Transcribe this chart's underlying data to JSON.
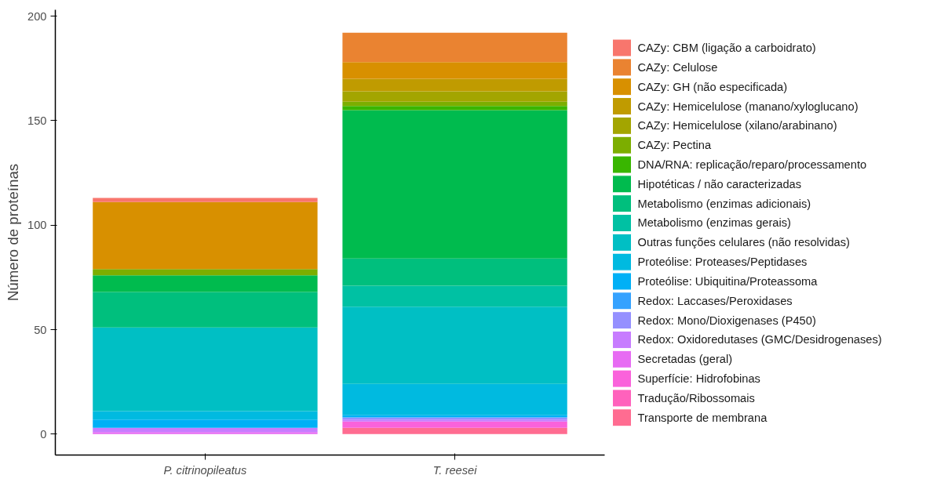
{
  "chart_data": {
    "type": "bar",
    "stacked": true,
    "ylabel": "Número de proteínas",
    "categories": [
      "P. citrinopileatus",
      "T. reesei"
    ],
    "ylim": [
      -10,
      203
    ],
    "yticks": [
      0,
      50,
      100,
      150,
      200
    ],
    "grid": false,
    "legend": "right",
    "series": [
      {
        "name": "Transporte de membrana",
        "color": "#ff6c91",
        "values": [
          0,
          3
        ]
      },
      {
        "name": "Tradução/Ribossomais",
        "color": "#ff62bc",
        "values": [
          0,
          0
        ]
      },
      {
        "name": "Superfície: Hidrofobinas",
        "color": "#fa62db",
        "values": [
          0,
          3
        ]
      },
      {
        "name": "Secretadas (geral)",
        "color": "#e76bf3",
        "values": [
          1,
          0
        ]
      },
      {
        "name": "Redox: Oxidoredutases (GMC/Desidrogenases)",
        "color": "#c77cff",
        "values": [
          2,
          1
        ]
      },
      {
        "name": "Redox: Mono/Dioxigenases (P450)",
        "color": "#9590ff",
        "values": [
          0,
          1
        ]
      },
      {
        "name": "Redox: Laccases/Peroxidases",
        "color": "#35a2ff",
        "values": [
          0,
          0
        ]
      },
      {
        "name": "Proteólise: Ubiquitina/Proteassoma",
        "color": "#00b0f6",
        "values": [
          4,
          1
        ]
      },
      {
        "name": "Proteólise: Proteases/Peptidases",
        "color": "#00bae0",
        "values": [
          4,
          15
        ]
      },
      {
        "name": "Outras funções celulares (não resolvidas)",
        "color": "#00bfc4",
        "values": [
          40,
          37
        ]
      },
      {
        "name": "Metabolismo (enzimas gerais)",
        "color": "#00c1a3",
        "values": [
          0,
          10
        ]
      },
      {
        "name": "Metabolismo (enzimas adicionais)",
        "color": "#00bf7d",
        "values": [
          17,
          13
        ]
      },
      {
        "name": "Hipotéticas / não caracterizadas",
        "color": "#00bb4e",
        "values": [
          8,
          71
        ]
      },
      {
        "name": "DNA/RNA: replicação/reparo/processamento",
        "color": "#39b600",
        "values": [
          0,
          2
        ]
      },
      {
        "name": "CAZy: Pectina",
        "color": "#7cae00",
        "values": [
          3,
          2
        ]
      },
      {
        "name": "CAZy: Hemicelulose (xilano/arabinano)",
        "color": "#a3a500",
        "values": [
          0,
          5
        ]
      },
      {
        "name": "CAZy: Hemicelulose (manano/xyloglucano)",
        "color": "#c09b00",
        "values": [
          0,
          6
        ]
      },
      {
        "name": "CAZy: GH (não especificada)",
        "color": "#d89000",
        "values": [
          32,
          8
        ]
      },
      {
        "name": "CAZy: Celulose",
        "color": "#ea8331",
        "values": [
          0,
          14
        ]
      },
      {
        "name": "CAZy: CBM (ligação a carboidrato)",
        "color": "#f8766d",
        "values": [
          2,
          0
        ]
      }
    ]
  }
}
